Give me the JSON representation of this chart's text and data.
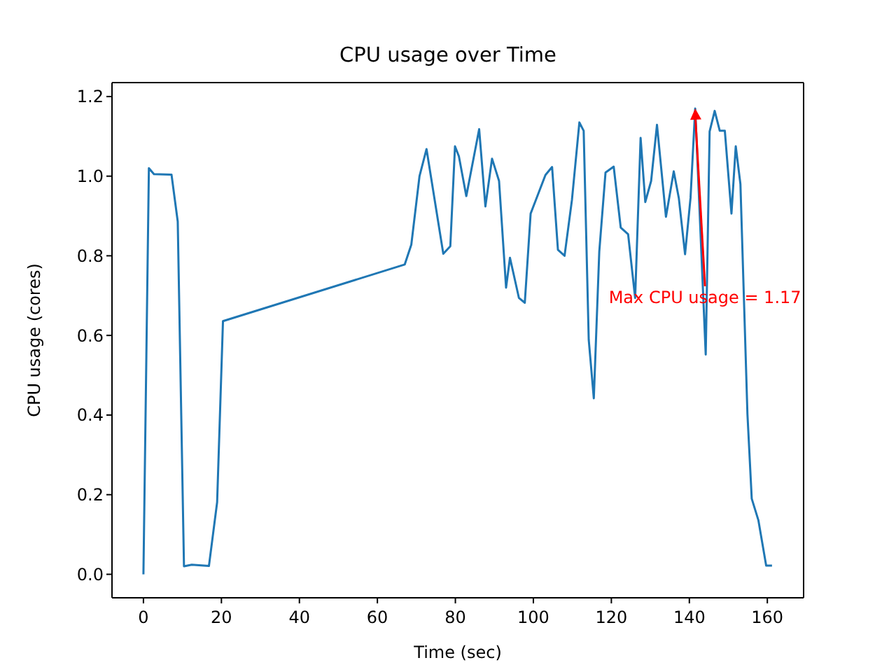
{
  "chart_data": {
    "type": "line",
    "title": "CPU usage over Time",
    "xlabel": "Time (sec)",
    "ylabel": "CPU usage (cores)",
    "x": [
      0,
      1.4,
      2.7,
      7.2,
      8.8,
      10.4,
      12.4,
      16.8,
      18.9,
      20.4,
      67.0,
      68.7,
      70.8,
      72.6,
      76.9,
      78.7,
      79.9,
      80.9,
      82.8,
      86.1,
      87.7,
      89.4,
      91.2,
      93.0,
      94.0,
      96.3,
      97.8,
      99.3,
      103.1,
      104.8,
      106.3,
      108.0,
      109.9,
      111.8,
      112.9,
      114.2,
      115.5,
      116.9,
      118.5,
      120.6,
      122.4,
      124.3,
      126.1,
      127.5,
      128.7,
      130.2,
      131.7,
      134.0,
      136.0,
      137.3,
      138.9,
      140.3,
      141.5,
      144.2,
      145.2,
      146.5,
      147.8,
      149.1,
      150.8,
      151.9,
      153.1,
      154.9,
      156.0,
      157.7,
      159.7,
      161.2
    ],
    "series": [
      {
        "color": "#1f77b4",
        "values": [
          0,
          1.02,
          1.005,
          1.004,
          0.886,
          0.02,
          0.024,
          0.021,
          0.181,
          0.636,
          0.778,
          0.828,
          1.0,
          1.068,
          0.805,
          0.824,
          1.075,
          1.05,
          0.95,
          1.118,
          0.924,
          1.044,
          0.988,
          0.72,
          0.795,
          0.694,
          0.682,
          0.906,
          1.003,
          1.023,
          0.815,
          0.8,
          0.941,
          1.135,
          1.114,
          0.589,
          0.442,
          0.81,
          1.009,
          1.024,
          0.871,
          0.854,
          0.694,
          1.096,
          0.935,
          0.988,
          1.129,
          0.898,
          1.012,
          0.945,
          0.804,
          0.945,
          1.17,
          0.552,
          1.112,
          1.164,
          1.114,
          1.114,
          0.906,
          1.075,
          0.98,
          0.402,
          0.19,
          0.136,
          0.022,
          0.022
        ]
      }
    ],
    "xlim": [
      -8.06,
      169.3
    ],
    "ylim": [
      -0.059,
      1.235
    ],
    "xticks": [
      0,
      20,
      40,
      60,
      80,
      100,
      120,
      140,
      160
    ],
    "yticks": [
      {
        "value": 0,
        "label": "0.0"
      },
      {
        "value": 0.2,
        "label": "0.2"
      },
      {
        "value": 0.4,
        "label": "0.4"
      },
      {
        "value": 0.6,
        "label": "0.6"
      },
      {
        "value": 0.8,
        "label": "0.8"
      },
      {
        "value": 1.0,
        "label": "1.0"
      },
      {
        "value": 1.2,
        "label": "1.2"
      }
    ],
    "marker": "none",
    "line_style": "solid",
    "annotations": [
      {
        "text": "Max CPU usage = 1.17",
        "x": 141.5,
        "y": 1.17
      }
    ]
  }
}
